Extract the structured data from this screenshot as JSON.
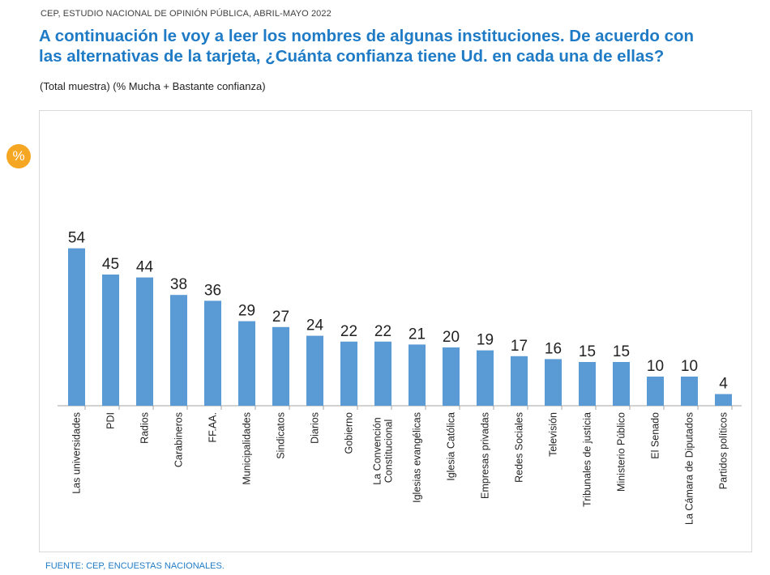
{
  "header": {
    "source_line": "CEP, ESTUDIO NACIONAL DE OPINIÓN PÚBLICA, ABRIL-MAYO 2022"
  },
  "title": {
    "line1": "A continuación le voy a leer los nombres de algunas instituciones. De acuerdo con",
    "line2": "las alternativas de la tarjeta, ¿Cuánta confianza tiene Ud. en cada una de ellas?"
  },
  "subtitle": "(Total muestra) (% Mucha + Bastante confianza)",
  "badge": {
    "label": "%",
    "color": "#f5a623"
  },
  "footer": {
    "source": "FUENTE: CEP, ENCUESTAS NACIONALES."
  },
  "colors": {
    "bar": "#5b9bd5",
    "title": "#1f7bc6"
  },
  "chart_data": {
    "type": "bar",
    "categories": [
      "Las universidades",
      "PDI",
      "Radios",
      "Carabineros",
      "FF.AA.",
      "Municipalidades",
      "Sindicatos",
      "Diarios",
      "Gobierno",
      "La Convención\nConstitucional",
      "Iglesias evangélicas",
      "Iglesia Católica",
      "Empresas privadas",
      "Redes Sociales",
      "Televisión",
      "Tribunales de justicia",
      "Ministerio Público",
      "El Senado",
      "La Cámara de Diputados",
      "Partidos políticos"
    ],
    "values": [
      54,
      45,
      44,
      38,
      36,
      29,
      27,
      24,
      22,
      22,
      21,
      20,
      19,
      17,
      16,
      15,
      15,
      10,
      10,
      4
    ],
    "data_labels": [
      "54",
      "45",
      "44",
      "38",
      "36",
      "29",
      "27",
      "24",
      "22",
      "22",
      "21",
      "20",
      "19",
      "17",
      "16",
      "15",
      "15",
      "10",
      "10",
      "4"
    ],
    "ylim": [
      0,
      60
    ],
    "grid": false,
    "legend": "none",
    "data_labels_shown": true,
    "category_label_orientation": "vertical"
  }
}
